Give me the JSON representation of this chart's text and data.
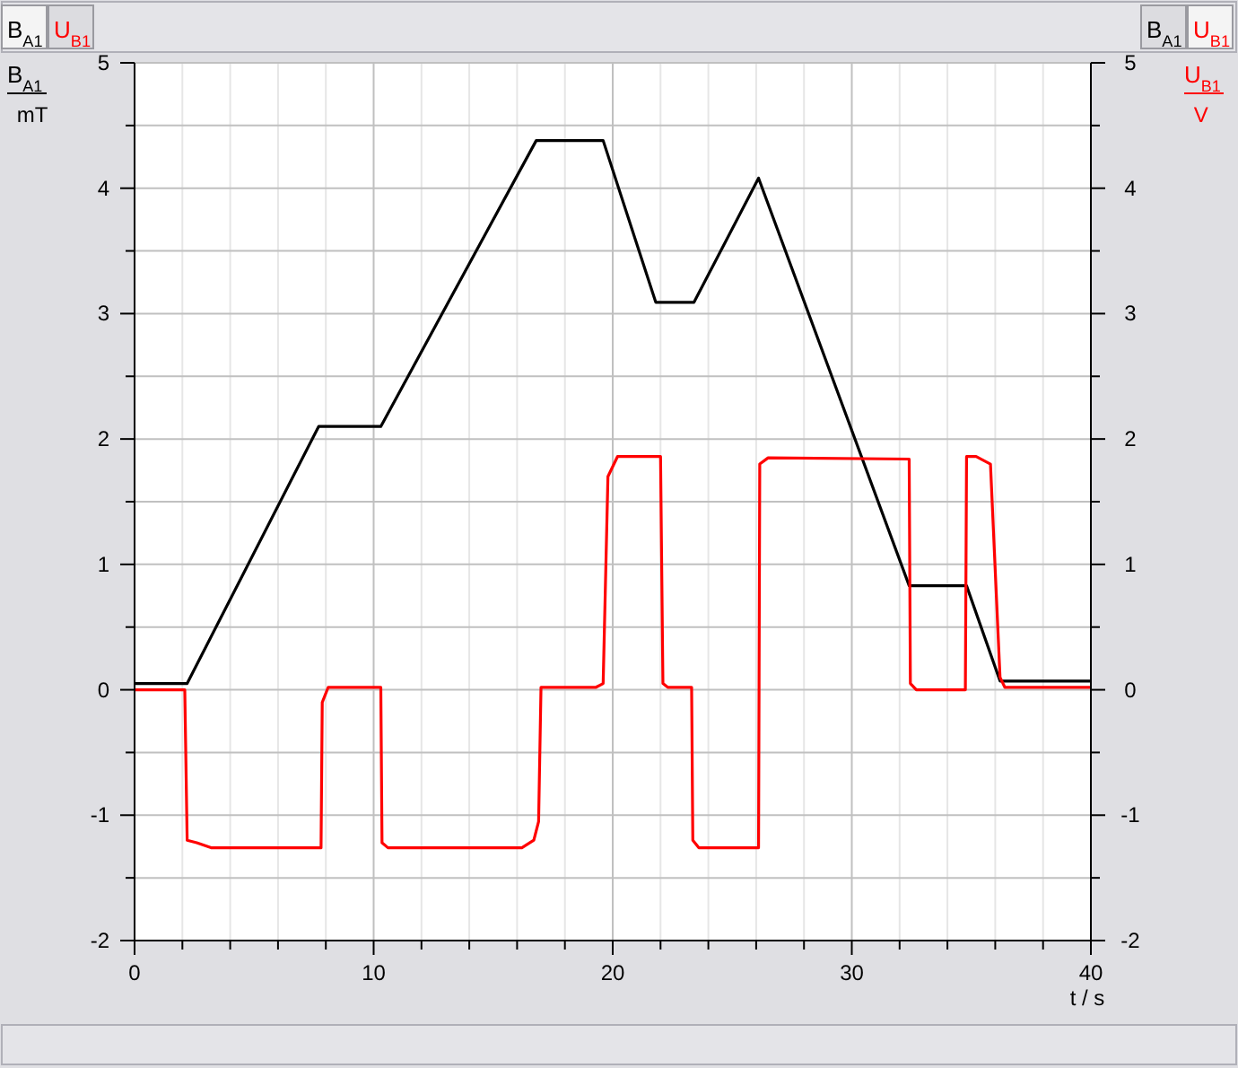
{
  "chart_data": {
    "type": "line",
    "xlabel": "t / s",
    "ylabel": "B$_{A1}$ mT",
    "y2label": "U$_{B1}$ V",
    "xlim": [
      0,
      40
    ],
    "xticks": [
      0,
      {
        "value": 2,
        "label": null
      },
      {
        "value": 4,
        "label": null
      },
      {
        "value": 6,
        "label": null
      },
      {
        "value": 8,
        "label": null
      },
      10,
      {
        "value": 12,
        "label": null
      },
      {
        "value": 14,
        "label": null
      },
      {
        "value": 16,
        "label": null
      },
      {
        "value": 18,
        "label": null
      },
      20,
      {
        "value": 22,
        "label": null
      },
      {
        "value": 24,
        "label": null
      },
      {
        "value": 26,
        "label": null
      },
      {
        "value": 28,
        "label": null
      },
      30,
      {
        "value": 32,
        "label": null
      },
      {
        "value": 34,
        "label": null
      },
      {
        "value": 36,
        "label": null
      },
      {
        "value": 38,
        "label": null
      },
      40
    ],
    "ylim": [
      -2,
      5
    ],
    "yticks": [
      -2,
      {
        "value": -1.5,
        "label": null
      },
      -1,
      {
        "value": -0.5,
        "label": null
      },
      0,
      {
        "value": 0.5,
        "label": null
      },
      1,
      {
        "value": 1.5,
        "label": null
      },
      2,
      {
        "value": 2.5,
        "label": null
      },
      3,
      {
        "value": 3.5,
        "label": null
      },
      4,
      {
        "value": 4.5,
        "label": null
      },
      5
    ],
    "y2lim": [
      -2,
      5
    ],
    "y2ticks": [
      -2,
      {
        "value": -1.5,
        "label": null
      },
      -1,
      {
        "value": -0.5,
        "label": null
      },
      0,
      {
        "value": 0.5,
        "label": null
      },
      1,
      {
        "value": 1.5,
        "label": null
      },
      2,
      {
        "value": 2.5,
        "label": null
      },
      3,
      {
        "value": 3.5,
        "label": null
      },
      4,
      {
        "value": 4.5,
        "label": null
      },
      5
    ],
    "grid": true,
    "legend": "top",
    "marker": "none",
    "line_style": "solid",
    "series": [
      {
        "name": "B$_{A1}$",
        "color": "#000000",
        "x": [
          0,
          2.2,
          7.7,
          10.3,
          16.8,
          19.6,
          21.8,
          23.4,
          26.1,
          32.4,
          34.8,
          36.2,
          40
        ],
        "values": [
          0.05,
          0.05,
          2.1,
          2.1,
          4.38,
          4.38,
          3.09,
          3.09,
          4.08,
          0.83,
          0.83,
          0.07,
          0.07
        ]
      },
      {
        "name": "U$_{B1}$",
        "color": "#ff0000",
        "axis": "y2",
        "x": [
          0,
          2.1,
          2.2,
          2.6,
          3.2,
          7.8,
          7.85,
          8.1,
          10.3,
          10.35,
          10.6,
          16.2,
          16.7,
          16.9,
          17.0,
          19.3,
          19.6,
          19.8,
          20.2,
          22.0,
          22.1,
          22.3,
          23.3,
          23.35,
          23.6,
          26.1,
          26.15,
          26.5,
          32.4,
          32.45,
          32.7,
          34.75,
          34.8,
          35.2,
          35.8,
          36.2,
          36.4,
          40
        ],
        "values": [
          0,
          0,
          -1.2,
          -1.22,
          -1.26,
          -1.26,
          -0.1,
          0.02,
          0.02,
          -1.22,
          -1.26,
          -1.26,
          -1.2,
          -1.05,
          0.02,
          0.02,
          0.05,
          1.7,
          1.86,
          1.86,
          0.05,
          0.02,
          0.02,
          -1.2,
          -1.26,
          -1.26,
          1.8,
          1.85,
          1.84,
          0.05,
          0,
          0,
          1.86,
          1.86,
          1.8,
          0.1,
          0.02,
          0.02
        ]
      }
    ]
  }
}
